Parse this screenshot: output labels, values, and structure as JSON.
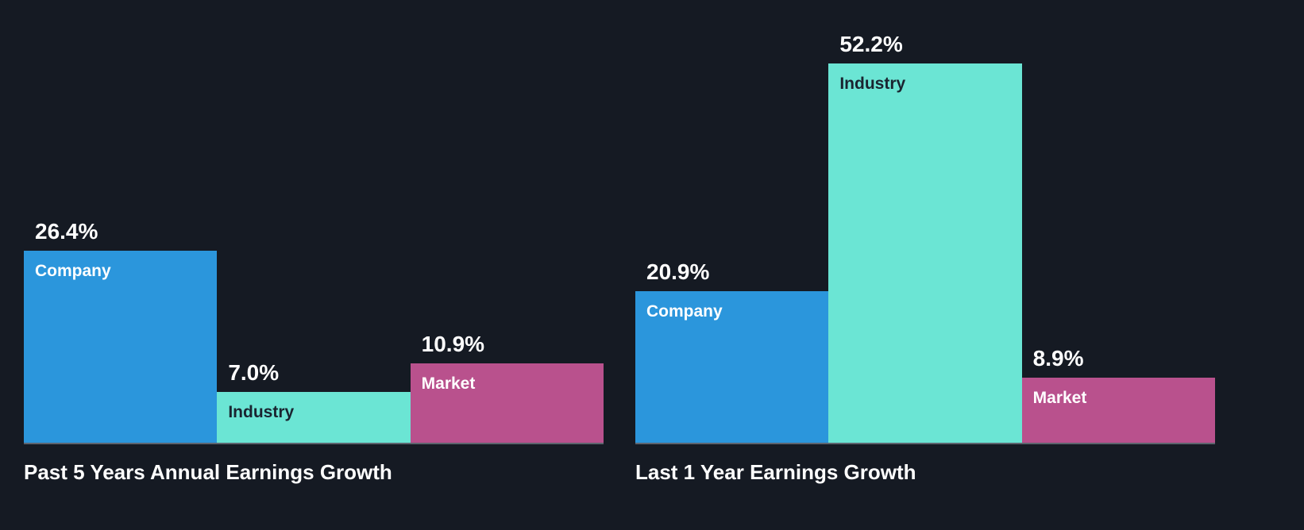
{
  "colors": {
    "background": "#151a23",
    "axis": "#5d646e",
    "title_text": "#ffffff",
    "bar_colors": [
      "#2b96dc",
      "#6be5d4",
      "#b9518d"
    ],
    "bar_label_colors": [
      "#ffffff",
      "#1a2430",
      "#ffffff"
    ]
  },
  "chart_data": [
    {
      "type": "bar",
      "title": "Past 5 Years Annual Earnings Growth",
      "categories": [
        "Company",
        "Industry",
        "Market"
      ],
      "values": [
        26.4,
        7.0,
        10.9
      ],
      "value_labels": [
        "26.4%",
        "7.0%",
        "10.9%"
      ],
      "ylim": [
        0,
        56
      ],
      "grid": false,
      "legend": "none"
    },
    {
      "type": "bar",
      "title": "Last 1 Year Earnings Growth",
      "categories": [
        "Company",
        "Industry",
        "Market"
      ],
      "values": [
        20.9,
        52.2,
        8.9
      ],
      "value_labels": [
        "20.9%",
        "52.2%",
        "8.9%"
      ],
      "ylim": [
        0,
        56
      ],
      "grid": false,
      "legend": "none"
    }
  ]
}
